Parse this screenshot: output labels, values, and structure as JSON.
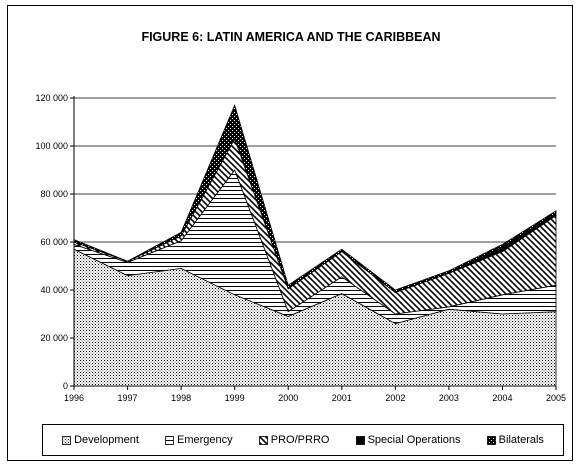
{
  "chart_data": {
    "type": "area",
    "stacked": true,
    "title": "FIGURE 6: LATIN AMERICA AND THE CARIBBEAN",
    "xlabel": "",
    "ylabel": "",
    "x": [
      "1996",
      "1997",
      "1998",
      "1999",
      "2000",
      "2001",
      "2002",
      "2003",
      "2004",
      "2005"
    ],
    "ylim": [
      0,
      120000
    ],
    "yticks": [
      0,
      20000,
      40000,
      60000,
      80000,
      100000,
      120000
    ],
    "ytick_labels": [
      "0",
      "20 000",
      "40 000",
      "60 000",
      "80 000",
      "100 000",
      "120 000"
    ],
    "grid": "horizontal",
    "legend": "bottom",
    "series": [
      {
        "name": "Development",
        "pattern": "dots",
        "values": [
          57000,
          46000,
          49000,
          38000,
          29000,
          38500,
          26000,
          32000,
          30000,
          31000
        ]
      },
      {
        "name": "Emergency",
        "pattern": "horizontal-lines",
        "values": [
          2000,
          5500,
          11500,
          52000,
          2000,
          7000,
          4000,
          1000,
          8000,
          11000
        ]
      },
      {
        "name": "PRO/PRRO",
        "pattern": "diagonal-lines",
        "values": [
          1000,
          500,
          2000,
          13000,
          9500,
          10500,
          9000,
          14000,
          18000,
          29000
        ]
      },
      {
        "name": "Special Operations",
        "pattern": "solid",
        "values": [
          0,
          0,
          0,
          0,
          0,
          0,
          0,
          0,
          2000,
          1000
        ]
      },
      {
        "name": "Bilaterals",
        "pattern": "checker",
        "values": [
          1000,
          0,
          1500,
          14000,
          1500,
          1000,
          1000,
          1000,
          1000,
          1000
        ]
      }
    ]
  }
}
